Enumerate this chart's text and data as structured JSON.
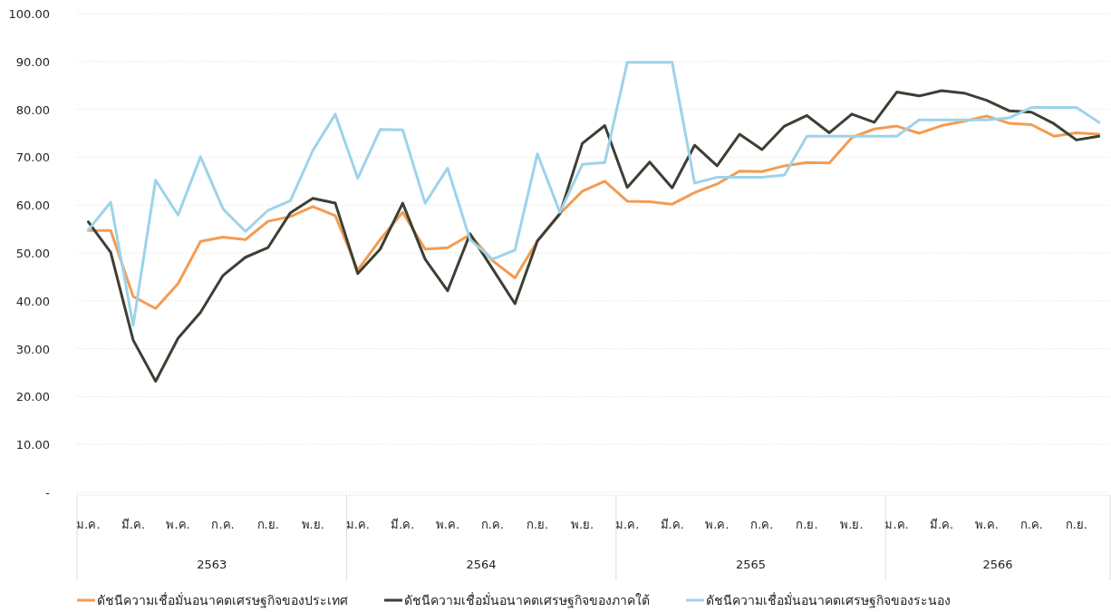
{
  "chart_data": {
    "type": "line",
    "categories": [
      "ม.ค.",
      null,
      "มี.ค.",
      null,
      "พ.ค.",
      null,
      "ก.ค.",
      null,
      "ก.ย.",
      null,
      "พ.ย.",
      null,
      "ม.ค.",
      null,
      "มี.ค.",
      null,
      "พ.ค.",
      null,
      "ก.ค.",
      null,
      "ก.ย.",
      null,
      "พ.ย.",
      null,
      "ม.ค.",
      null,
      "มี.ค.",
      null,
      "พ.ค.",
      null,
      "ก.ค.",
      null,
      "ก.ย.",
      null,
      "พ.ย.",
      null,
      "ม.ค.",
      null,
      "มี.ค.",
      null,
      "พ.ค.",
      null,
      "ก.ค.",
      null,
      "ก.ย.",
      null
    ],
    "series": [
      {
        "name": "ดัชนีความเชื่อมั่นอนาคตเศรษฐกิจของประเทศ",
        "color": "#f39c53",
        "values": [
          54.7,
          54.7,
          40.9,
          38.4,
          43.6,
          52.4,
          53.3,
          52.8,
          56.6,
          57.6,
          59.7,
          57.8,
          46.4,
          52.8,
          58.5,
          50.8,
          51.1,
          53.8,
          48.4,
          44.8,
          52.5,
          58.2,
          62.9,
          65.0,
          60.8,
          60.7,
          60.2,
          62.6,
          64.4,
          67.1,
          67.0,
          68.2,
          68.9,
          68.8,
          74.1,
          75.9,
          76.5,
          75.0,
          76.6,
          77.5,
          78.6,
          77.1,
          76.8,
          74.4,
          75.1,
          74.8
        ]
      },
      {
        "name": "ดัชนีความเชื่อมั่นอนาคตเศรษฐกิจของภาคใต้",
        "color": "#3b4034",
        "values": [
          56.5,
          50.1,
          31.8,
          23.2,
          32.2,
          37.6,
          45.3,
          49.1,
          51.1,
          58.4,
          61.4,
          60.4,
          45.7,
          50.8,
          60.4,
          48.7,
          42.1,
          54.0,
          46.7,
          39.4,
          52.5,
          58.2,
          72.9,
          76.6,
          63.7,
          69.0,
          63.6,
          72.5,
          68.2,
          74.8,
          71.6,
          76.5,
          78.7,
          75.1,
          79.0,
          77.3,
          83.6,
          82.8,
          83.9,
          83.4,
          81.9,
          79.7,
          79.4,
          77.0,
          73.6,
          74.4
        ]
      },
      {
        "name": "ดัชนีความเชื่อมั่นอนาคตเศรษฐกิจของระนอง",
        "color": "#9dd3ea",
        "values": [
          54.8,
          60.6,
          34.9,
          65.2,
          57.9,
          70.1,
          59.2,
          54.5,
          58.9,
          60.9,
          71.4,
          79.0,
          65.6,
          75.8,
          75.7,
          60.4,
          67.7,
          52.8,
          48.7,
          50.6,
          70.7,
          58.5,
          68.5,
          68.9,
          89.8,
          89.8,
          89.8,
          64.6,
          65.8,
          65.8,
          65.8,
          66.3,
          74.4,
          74.4,
          74.4,
          74.4,
          74.4,
          77.8,
          77.8,
          77.8,
          77.8,
          78.2,
          80.4,
          80.4,
          80.4,
          77.3
        ]
      }
    ],
    "ylim": [
      0,
      100
    ],
    "yticks": [
      {
        "value": 0,
        "label": "-"
      },
      {
        "value": 10,
        "label": "10.00"
      },
      {
        "value": 20,
        "label": "20.00"
      },
      {
        "value": 30,
        "label": "30.00"
      },
      {
        "value": 40,
        "label": "40.00"
      },
      {
        "value": 50,
        "label": "50.00"
      },
      {
        "value": 60,
        "label": "60.00"
      },
      {
        "value": 70,
        "label": "70.00"
      },
      {
        "value": 80,
        "label": "80.00"
      },
      {
        "value": 90,
        "label": "90.00"
      },
      {
        "value": 100,
        "label": "100.00"
      }
    ],
    "annotations": [
      "2563",
      "2564",
      "2565",
      "2566"
    ],
    "grid": "y",
    "legend": "bottom",
    "marker": "none",
    "line_style": "solid"
  }
}
